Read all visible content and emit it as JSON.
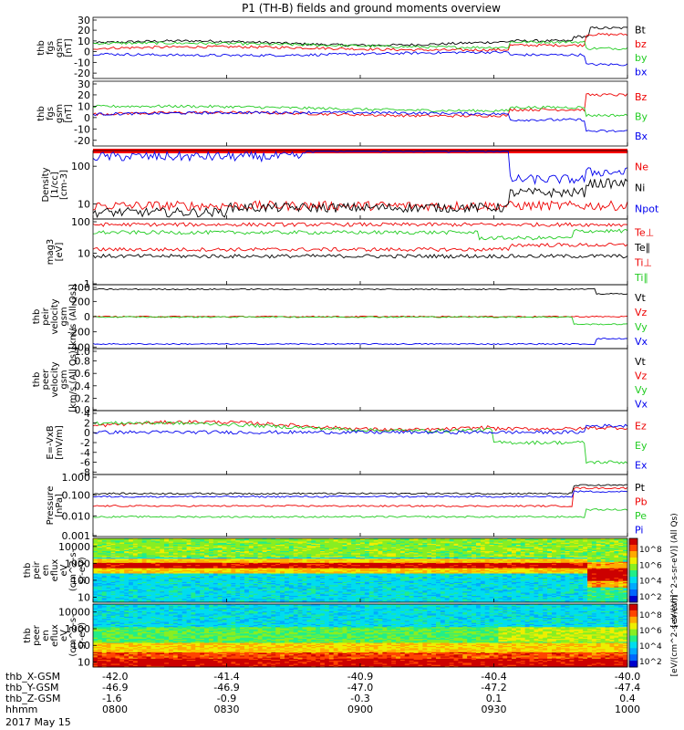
{
  "title": "P1 (TH-B) fields and ground moments overview",
  "date_label": "2017 May 15",
  "colors": {
    "black": "#000000",
    "red": "#ee0000",
    "green": "#22cc22",
    "blue": "#0000ee",
    "bar": "#ff0000"
  },
  "chart_data": [
    {
      "type": "line",
      "id": "p1",
      "ylabel": [
        "thb",
        "fgs",
        "gsm",
        "[nT]"
      ],
      "yticks": [
        "30",
        "20",
        "10",
        "0",
        "-10",
        "-20"
      ],
      "ylim": [
        -25,
        32
      ],
      "series": [
        {
          "name": "Bt",
          "color": "black"
        },
        {
          "name": "bz",
          "color": "red"
        },
        {
          "name": "by",
          "color": "green"
        },
        {
          "name": "bx",
          "color": "blue"
        }
      ]
    },
    {
      "type": "line",
      "id": "p2",
      "ylabel": [
        "thb",
        "fgs",
        "gsm",
        "[nT]"
      ],
      "yticks": [
        "30",
        "20",
        "10",
        "0",
        "-10",
        "-20"
      ],
      "ylim": [
        -25,
        32
      ],
      "series": [
        {
          "name": "Bz",
          "color": "red"
        },
        {
          "name": "By",
          "color": "green"
        },
        {
          "name": "Bx",
          "color": "blue"
        }
      ]
    },
    {
      "type": "line",
      "id": "p3",
      "scale": "log",
      "ylabel": [
        "Density",
        "[1/cc]",
        "[cm-3]"
      ],
      "yticks": [
        "100",
        "10"
      ],
      "ylim": [
        4,
        260
      ],
      "series": [
        {
          "name": "Ne",
          "color": "red"
        },
        {
          "name": "Ni",
          "color": "black"
        },
        {
          "name": "Npot",
          "color": "blue"
        }
      ]
    },
    {
      "type": "line",
      "id": "p4",
      "scale": "log",
      "ylabel": [
        "mag3",
        "[eV]"
      ],
      "yticks": [
        "100",
        "10",
        "1"
      ],
      "ylim": [
        1,
        120
      ],
      "series": [
        {
          "name": "Te⊥",
          "color": "red"
        },
        {
          "name": "Te∥",
          "color": "black"
        },
        {
          "name": "Ti⊥",
          "color": "red"
        },
        {
          "name": "Ti∥",
          "color": "green"
        }
      ]
    },
    {
      "type": "line",
      "id": "p5",
      "ylabel": [
        "thb",
        "peir",
        "velocity",
        "gsm",
        "[km/s (All Qs)]"
      ],
      "yticks": [
        "400",
        "200",
        "0",
        "-200",
        "-400"
      ],
      "ylim": [
        -420,
        420
      ],
      "series": [
        {
          "name": "Vt",
          "color": "black"
        },
        {
          "name": "Vz",
          "color": "red"
        },
        {
          "name": "Vy",
          "color": "green"
        },
        {
          "name": "Vx",
          "color": "blue"
        }
      ]
    },
    {
      "type": "line",
      "id": "p6",
      "ylabel": [
        "thb",
        "peer",
        "velocity",
        "gsm",
        "[km/s (All Qs)]"
      ],
      "yticks": [
        "1.0",
        "0.8",
        "0.6",
        "0.4",
        "0.2",
        "0.0"
      ],
      "ylim": [
        0,
        1
      ],
      "series": [
        {
          "name": "Vt",
          "color": "black"
        },
        {
          "name": "Vz",
          "color": "red"
        },
        {
          "name": "Vy",
          "color": "green"
        },
        {
          "name": "Vx",
          "color": "blue"
        }
      ]
    },
    {
      "type": "line",
      "id": "p7",
      "ylabel": [
        "E=-VxB",
        "[mV/m]"
      ],
      "yticks": [
        "4",
        "2",
        "0",
        "-2",
        "-4",
        "-6",
        "-8"
      ],
      "ylim": [
        -8.5,
        4.5
      ],
      "series": [
        {
          "name": "Ez",
          "color": "red"
        },
        {
          "name": "Ey",
          "color": "green"
        },
        {
          "name": "Ex",
          "color": "blue"
        }
      ]
    },
    {
      "type": "line",
      "id": "p8",
      "scale": "log",
      "ylabel": [
        "Pressure",
        "[nPa]"
      ],
      "yticks": [
        "1.000",
        "0.100",
        "0.010",
        "0.001"
      ],
      "ylim": [
        0.001,
        1
      ],
      "series": [
        {
          "name": "Pt",
          "color": "black"
        },
        {
          "name": "Pb",
          "color": "red"
        },
        {
          "name": "Pe",
          "color": "green"
        },
        {
          "name": "Pi",
          "color": "blue"
        }
      ]
    },
    {
      "type": "heatmap",
      "id": "p9",
      "scale": "log",
      "ylabel": [
        "thb",
        "peir",
        "en",
        "eflux",
        "eV",
        "(cm^2-s-",
        "sr-eV)"
      ],
      "yticks": [
        "10000",
        "1000",
        "100",
        "10"
      ],
      "ylim": [
        5,
        30000
      ],
      "colorbar_label": "[eV/(cm^2-s-sr-eV)] (All Qs)",
      "colorbar_ticks": [
        "10^8",
        "10^6",
        "10^4",
        "10^2"
      ]
    },
    {
      "type": "heatmap",
      "id": "p10",
      "scale": "log",
      "ylabel": [
        "thb",
        "peer",
        "en",
        "eflux",
        "eV",
        "(cm^2-s-",
        "sr-eV)"
      ],
      "yticks": [
        "10000",
        "1000",
        "100",
        "10"
      ],
      "ylim": [
        5,
        30000
      ],
      "colorbar_label": "[eV/(cm^2-s-sr-eV)]",
      "colorbar_ticks": [
        "10^8",
        "10^6",
        "10^4",
        "10^2"
      ]
    }
  ],
  "x_axis": {
    "rows": [
      {
        "label": "thb_X-GSM",
        "values": [
          "-42.0",
          "-41.4",
          "-40.9",
          "-40.4",
          "-40.0"
        ]
      },
      {
        "label": "thb_Y-GSM",
        "values": [
          "-46.9",
          "-46.9",
          "-47.0",
          "-47.2",
          "-47.4"
        ]
      },
      {
        "label": "thb_Z-GSM",
        "values": [
          "-1.6",
          "-0.9",
          "-0.3",
          "0.1",
          "0.4"
        ]
      },
      {
        "label": "hhmm",
        "values": [
          "0800",
          "0830",
          "0900",
          "0930",
          "1000"
        ]
      }
    ],
    "major_ticks_hhmm": [
      "0800",
      "0830",
      "0900",
      "0930",
      "1000"
    ]
  }
}
